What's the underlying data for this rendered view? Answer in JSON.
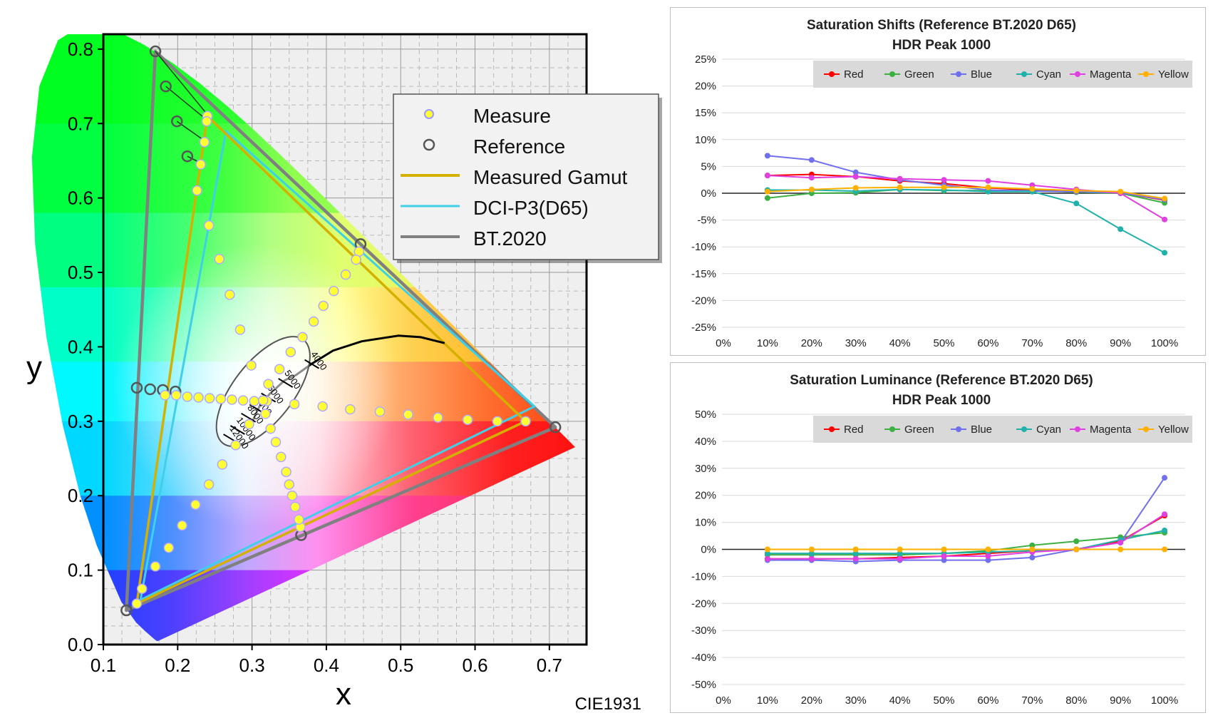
{
  "cie": {
    "xlabel": "x",
    "ylabel": "y",
    "label": "CIE1931",
    "legend": [
      {
        "label": "Measure",
        "kind": "measure"
      },
      {
        "label": "Reference",
        "kind": "reference"
      },
      {
        "label": "Measured Gamut",
        "kind": "line",
        "color": "#d4b000"
      },
      {
        "label": "DCI-P3(D65)",
        "kind": "line",
        "color": "#3fd0e8"
      },
      {
        "label": "BT.2020",
        "kind": "line",
        "color": "#808080"
      }
    ],
    "x_ticks": [
      "0.1",
      "0.2",
      "0.3",
      "0.4",
      "0.5",
      "0.6",
      "0.7"
    ],
    "y_ticks": [
      "0.0",
      "0.1",
      "0.2",
      "0.3",
      "0.4",
      "0.5",
      "0.6",
      "0.7",
      "0.8"
    ],
    "cct_labels": [
      "4000",
      "5000",
      "6000",
      "7000",
      "8000",
      "10000",
      "12000"
    ],
    "colors": {
      "measure": "#ffff33",
      "reference": "#555555",
      "measured_gamut": "#d4b000",
      "p3": "#3fd0e8",
      "bt2020": "#808080"
    }
  },
  "chart_data": [
    {
      "type": "scatter",
      "name": "CIE 1931 chromaticity",
      "xlabel": "x",
      "ylabel": "y",
      "xlim": [
        0.1,
        0.75
      ],
      "ylim": [
        0.0,
        0.82
      ],
      "gamuts": {
        "bt2020": [
          [
            0.708,
            0.292
          ],
          [
            0.17,
            0.797
          ],
          [
            0.131,
            0.046
          ]
        ],
        "dci_p3": [
          [
            0.68,
            0.32
          ],
          [
            0.265,
            0.69
          ],
          [
            0.15,
            0.06
          ]
        ],
        "measured": [
          [
            0.668,
            0.3
          ],
          [
            0.24,
            0.71
          ],
          [
            0.145,
            0.055
          ]
        ]
      },
      "white_point": [
        0.3127,
        0.329
      ],
      "reference_points": [
        [
          0.17,
          0.797
        ],
        [
          0.184,
          0.75
        ],
        [
          0.199,
          0.703
        ],
        [
          0.213,
          0.656
        ],
        [
          0.708,
          0.292
        ],
        [
          0.131,
          0.046
        ],
        [
          0.366,
          0.147
        ],
        [
          0.145,
          0.345
        ],
        [
          0.163,
          0.343
        ],
        [
          0.18,
          0.342
        ],
        [
          0.197,
          0.34
        ],
        [
          0.446,
          0.538
        ]
      ],
      "measured_points": [
        [
          0.24,
          0.71
        ],
        [
          0.239,
          0.703
        ],
        [
          0.236,
          0.675
        ],
        [
          0.231,
          0.645
        ],
        [
          0.226,
          0.61
        ],
        [
          0.242,
          0.563
        ],
        [
          0.256,
          0.518
        ],
        [
          0.27,
          0.47
        ],
        [
          0.284,
          0.423
        ],
        [
          0.299,
          0.375
        ],
        [
          0.145,
          0.055
        ],
        [
          0.152,
          0.075
        ],
        [
          0.17,
          0.105
        ],
        [
          0.188,
          0.13
        ],
        [
          0.206,
          0.16
        ],
        [
          0.224,
          0.188
        ],
        [
          0.242,
          0.215
        ],
        [
          0.26,
          0.242
        ],
        [
          0.278,
          0.268
        ],
        [
          0.296,
          0.296
        ],
        [
          0.668,
          0.3
        ],
        [
          0.63,
          0.3
        ],
        [
          0.59,
          0.302
        ],
        [
          0.55,
          0.305
        ],
        [
          0.51,
          0.309
        ],
        [
          0.472,
          0.313
        ],
        [
          0.432,
          0.316
        ],
        [
          0.395,
          0.32
        ],
        [
          0.357,
          0.323
        ],
        [
          0.32,
          0.327
        ],
        [
          0.183,
          0.335
        ],
        [
          0.198,
          0.335
        ],
        [
          0.213,
          0.333
        ],
        [
          0.228,
          0.332
        ],
        [
          0.243,
          0.331
        ],
        [
          0.258,
          0.33
        ],
        [
          0.273,
          0.329
        ],
        [
          0.288,
          0.328
        ],
        [
          0.303,
          0.327
        ],
        [
          0.315,
          0.328
        ],
        [
          0.444,
          0.528
        ],
        [
          0.44,
          0.517
        ],
        [
          0.426,
          0.497
        ],
        [
          0.41,
          0.475
        ],
        [
          0.396,
          0.455
        ],
        [
          0.383,
          0.434
        ],
        [
          0.368,
          0.413
        ],
        [
          0.352,
          0.393
        ],
        [
          0.337,
          0.37
        ],
        [
          0.322,
          0.35
        ],
        [
          0.365,
          0.158
        ],
        [
          0.363,
          0.168
        ],
        [
          0.358,
          0.185
        ],
        [
          0.354,
          0.2
        ],
        [
          0.35,
          0.215
        ],
        [
          0.346,
          0.232
        ],
        [
          0.339,
          0.252
        ],
        [
          0.332,
          0.272
        ],
        [
          0.325,
          0.29
        ],
        [
          0.318,
          0.31
        ]
      ]
    },
    {
      "type": "line",
      "title": "Saturation Shifts (Reference BT.2020 D65)",
      "subtitle": "HDR Peak 1000",
      "categories": [
        "0%",
        "10%",
        "20%",
        "30%",
        "40%",
        "50%",
        "60%",
        "70%",
        "80%",
        "90%",
        "100%"
      ],
      "y_ticks": [
        "25%",
        "20%",
        "15%",
        "10%",
        "5%",
        "0%",
        "-5%",
        "-10%",
        "-15%",
        "-20%",
        "-25%"
      ],
      "ylim": [
        -25,
        25
      ],
      "legend_position": "top-right",
      "series": [
        {
          "name": "Red",
          "color": "#ff0000",
          "values": [
            null,
            3.3,
            3.5,
            3.1,
            2.3,
            1.8,
            1.0,
            0.6,
            0.5,
            0.1,
            -1.3
          ]
        },
        {
          "name": "Green",
          "color": "#3cb043",
          "values": [
            null,
            -0.9,
            0.0,
            0.1,
            0.7,
            0.5,
            0.5,
            0.5,
            0.2,
            0.0,
            -1.8
          ]
        },
        {
          "name": "Blue",
          "color": "#7070ee",
          "values": [
            null,
            7.0,
            6.2,
            3.9,
            2.5,
            1.5,
            0.6,
            0.4,
            0.3,
            0.1,
            -1.2
          ]
        },
        {
          "name": "Cyan",
          "color": "#20b2aa",
          "values": [
            null,
            0.6,
            0.6,
            0.4,
            0.7,
            0.6,
            0.3,
            0.3,
            -1.9,
            -6.7,
            -11.1
          ]
        },
        {
          "name": "Magenta",
          "color": "#e040e0",
          "values": [
            null,
            3.3,
            2.9,
            3.1,
            2.7,
            2.5,
            2.3,
            1.5,
            0.7,
            0.0,
            -4.9
          ]
        },
        {
          "name": "Yellow",
          "color": "#ffb000",
          "values": [
            null,
            0.3,
            0.7,
            1.0,
            1.1,
            1.1,
            1.1,
            0.8,
            0.5,
            0.3,
            -1.0
          ]
        }
      ]
    },
    {
      "type": "line",
      "title": "Saturation Luminance (Reference BT.2020 D65)",
      "subtitle": "HDR Peak 1000",
      "categories": [
        "0%",
        "10%",
        "20%",
        "30%",
        "40%",
        "50%",
        "60%",
        "70%",
        "80%",
        "90%",
        "100%"
      ],
      "y_ticks": [
        "50%",
        "40%",
        "30%",
        "20%",
        "10%",
        "0%",
        "-10%",
        "-20%",
        "-30%",
        "-40%",
        "-50%"
      ],
      "ylim": [
        -50,
        50
      ],
      "legend_position": "top-right",
      "series": [
        {
          "name": "Red",
          "color": "#ff0000",
          "values": [
            null,
            -3.5,
            -3.5,
            -3.5,
            -3.0,
            -2.5,
            -1.5,
            -0.5,
            0.0,
            3.0,
            12.5
          ]
        },
        {
          "name": "Green",
          "color": "#3cb043",
          "values": [
            null,
            -2.0,
            -2.0,
            -2.0,
            -2.0,
            -1.5,
            -0.5,
            1.5,
            3.0,
            4.5,
            6.2
          ]
        },
        {
          "name": "Blue",
          "color": "#7070ee",
          "values": [
            null,
            -4.0,
            -4.0,
            -4.5,
            -4.0,
            -4.0,
            -4.0,
            -3.0,
            0.0,
            2.5,
            26.5
          ]
        },
        {
          "name": "Cyan",
          "color": "#20b2aa",
          "values": [
            null,
            -1.5,
            -1.5,
            -1.5,
            -1.5,
            -1.5,
            -1.0,
            -0.5,
            0.0,
            3.5,
            7.0
          ]
        },
        {
          "name": "Magenta",
          "color": "#e040e0",
          "values": [
            null,
            -3.5,
            -3.5,
            -3.5,
            -3.5,
            -2.5,
            -2.5,
            -1.0,
            0.0,
            2.5,
            13.0
          ]
        },
        {
          "name": "Yellow",
          "color": "#ffb000",
          "values": [
            null,
            0.0,
            0.0,
            0.0,
            0.0,
            0.0,
            0.0,
            0.0,
            0.0,
            0.0,
            0.0
          ]
        }
      ]
    }
  ]
}
